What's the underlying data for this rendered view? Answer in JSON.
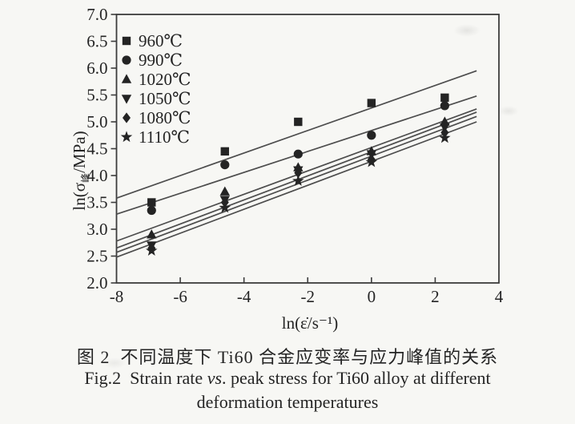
{
  "figure": {
    "background": "#f7f7f4",
    "ink_color": "#242424",
    "spine_color": "#3c3c3c",
    "fit_line_color": "#4d4d4d"
  },
  "chart_data": {
    "type": "scatter",
    "title": "",
    "xlabel": "ln(ε̇/s⁻¹)",
    "ylabel_prefix": "ln(σ",
    "ylabel_sub": "峰",
    "ylabel_suffix": "/MPa)",
    "xlim": [
      -8,
      4
    ],
    "ylim": [
      2.0,
      7.0
    ],
    "x_tick_labels": [
      "-8",
      "-6",
      "-4",
      "-2",
      "0",
      "2",
      "4"
    ],
    "x_tick_values": [
      -8,
      -6,
      -4,
      -2,
      0,
      2,
      4
    ],
    "y_tick_labels": [
      "7.0",
      "6.5",
      "6.0",
      "5.5",
      "5.0",
      "4.5",
      "4.0",
      "3.5",
      "3.0",
      "2.5",
      "2.0"
    ],
    "y_tick_values": [
      7.0,
      6.5,
      6.0,
      5.5,
      5.0,
      4.5,
      4.0,
      3.5,
      3.0,
      2.5,
      2.0
    ],
    "grid": false,
    "legend_position": "upper-left",
    "x": [
      -6.9,
      -4.6,
      -2.3,
      0,
      2.3
    ],
    "series": [
      {
        "name": "960℃",
        "marker": "square",
        "values": [
          3.5,
          4.45,
          5.0,
          5.35,
          5.45
        ],
        "fit_x": [
          -8,
          3.3
        ],
        "fit_y": [
          3.58,
          5.95
        ]
      },
      {
        "name": "990℃",
        "marker": "circle",
        "values": [
          3.35,
          4.2,
          4.4,
          4.75,
          5.3
        ],
        "fit_x": [
          -8,
          3.3
        ],
        "fit_y": [
          3.28,
          5.48
        ]
      },
      {
        "name": "1020℃",
        "marker": "triangle-up",
        "values": [
          2.9,
          3.7,
          4.15,
          4.45,
          5.0
        ],
        "fit_x": [
          -8,
          3.3
        ],
        "fit_y": [
          2.78,
          5.24
        ]
      },
      {
        "name": "1050℃",
        "marker": "triangle-down",
        "values": [
          2.7,
          3.55,
          4.1,
          4.4,
          4.9
        ],
        "fit_x": [
          -8,
          3.3
        ],
        "fit_y": [
          2.65,
          5.18
        ]
      },
      {
        "name": "1080℃",
        "marker": "diamond",
        "values": [
          2.65,
          3.5,
          4.05,
          4.3,
          4.8
        ],
        "fit_x": [
          -8,
          3.3
        ],
        "fit_y": [
          2.57,
          5.1
        ]
      },
      {
        "name": "1110℃",
        "marker": "star",
        "values": [
          2.6,
          3.4,
          3.9,
          4.25,
          4.7
        ],
        "fit_x": [
          -8,
          3.3
        ],
        "fit_y": [
          2.48,
          5.0
        ]
      }
    ]
  },
  "caption": {
    "zh": "图 2  不同温度下 Ti60 合金应变率与应力峰值的关系",
    "en_prefix": "Fig.2  Strain rate ",
    "en_vs": "vs",
    "en_suffix": ". peak stress for Ti60 alloy at different",
    "en_line2": "deformation temperatures"
  }
}
